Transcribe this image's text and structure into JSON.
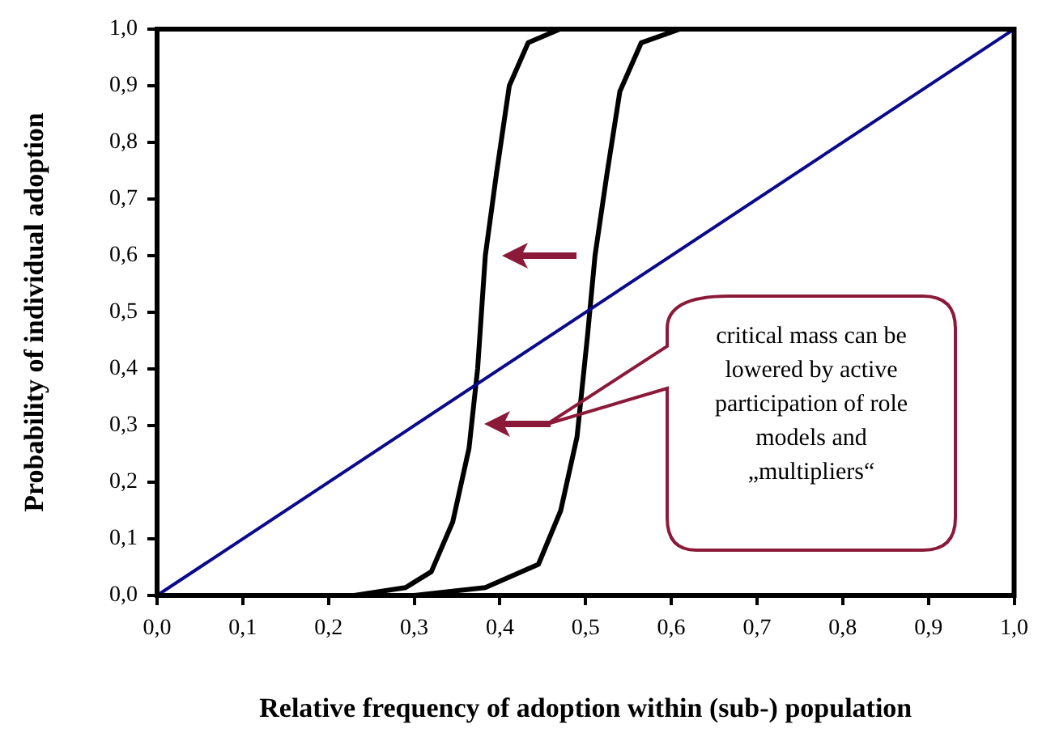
{
  "chart_data": {
    "type": "line",
    "xlabel": "Relative frequency of adoption within (sub-) population",
    "ylabel": "Probability of individual adoption",
    "xlim": [
      0,
      1
    ],
    "ylim": [
      0,
      1
    ],
    "xticks": [
      {
        "value": 0,
        "label": "0,0"
      },
      {
        "value": 0.1,
        "label": "0,1"
      },
      {
        "value": 0.2,
        "label": "0,2"
      },
      {
        "value": 0.3,
        "label": "0,3"
      },
      {
        "value": 0.4,
        "label": "0,4"
      },
      {
        "value": 0.5,
        "label": "0,5"
      },
      {
        "value": 0.6,
        "label": "0,6"
      },
      {
        "value": 0.7,
        "label": "0,7"
      },
      {
        "value": 0.8,
        "label": "0,8"
      },
      {
        "value": 0.9,
        "label": "0,9"
      },
      {
        "value": 1,
        "label": "1,0"
      }
    ],
    "yticks": [
      {
        "value": 0,
        "label": "0,0"
      },
      {
        "value": 0.1,
        "label": "0,1"
      },
      {
        "value": 0.2,
        "label": "0,2"
      },
      {
        "value": 0.3,
        "label": "0,3"
      },
      {
        "value": 0.4,
        "label": "0,4"
      },
      {
        "value": 0.5,
        "label": "0,5"
      },
      {
        "value": 0.6,
        "label": "0,6"
      },
      {
        "value": 0.7,
        "label": "0,7"
      },
      {
        "value": 0.8,
        "label": "0,8"
      },
      {
        "value": 0.9,
        "label": "0,9"
      },
      {
        "value": 1,
        "label": "1,0"
      }
    ],
    "grid": false,
    "legend": false,
    "marker": "none",
    "line_style": "solid",
    "series": [
      {
        "color": "#0a0a8c",
        "x": [
          0,
          1
        ],
        "values": [
          0,
          1
        ]
      },
      {
        "color": "#000000",
        "x": [
          0,
          0.23,
          0.29,
          0.32,
          0.345,
          0.364,
          0.374,
          0.383,
          0.396,
          0.411,
          0.433,
          0.47,
          1
        ],
        "values": [
          0,
          0,
          0.014,
          0.042,
          0.13,
          0.26,
          0.4,
          0.6,
          0.745,
          0.9,
          0.976,
          1,
          1
        ]
      },
      {
        "color": "#000000",
        "x": [
          0,
          0.3,
          0.383,
          0.445,
          0.471,
          0.49,
          0.502,
          0.511,
          0.525,
          0.54,
          0.565,
          0.61,
          1
        ],
        "values": [
          0,
          0,
          0.014,
          0.055,
          0.15,
          0.28,
          0.455,
          0.6,
          0.745,
          0.89,
          0.976,
          1,
          1
        ]
      }
    ],
    "annotations": [
      "critical mass can be lowered by active participation of role models and „multipliers“"
    ]
  }
}
